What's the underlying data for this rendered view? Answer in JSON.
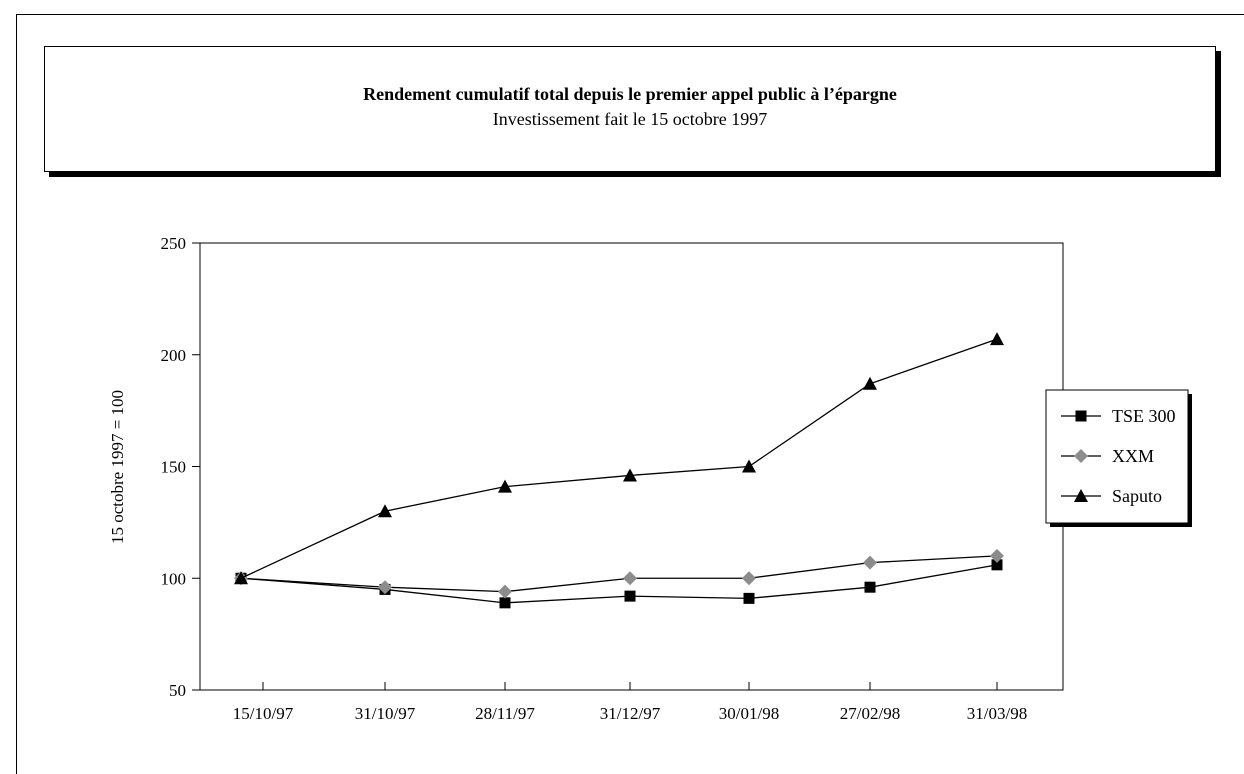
{
  "chart_data": {
    "type": "line",
    "title": "Rendement cumulatif total depuis le premier appel public à l’épargne",
    "subtitle": "Investissement fait le 15 octobre 1997",
    "xlabel": "",
    "ylabel": "15 octobre 1997 = 100",
    "ylim": [
      50,
      250
    ],
    "yticks": [
      "50",
      "100",
      "150",
      "200",
      "250"
    ],
    "categories": [
      "15/10/97",
      "31/10/97",
      "28/11/97",
      "31/12/97",
      "30/01/98",
      "27/02/98",
      "31/03/98"
    ],
    "series": [
      {
        "name": "TSE 300",
        "marker": "square",
        "color": "#000000",
        "values": [
          100,
          95,
          89,
          92,
          91,
          96,
          106
        ]
      },
      {
        "name": "XXM",
        "marker": "diamond",
        "color": "#8c8c8c",
        "values": [
          100,
          96,
          94,
          100,
          100,
          107,
          110
        ]
      },
      {
        "name": "Saputo",
        "marker": "triangle",
        "color": "#000000",
        "values": [
          100,
          130,
          141,
          146,
          150,
          187,
          207
        ]
      }
    ],
    "legend": "right",
    "grid": false
  }
}
